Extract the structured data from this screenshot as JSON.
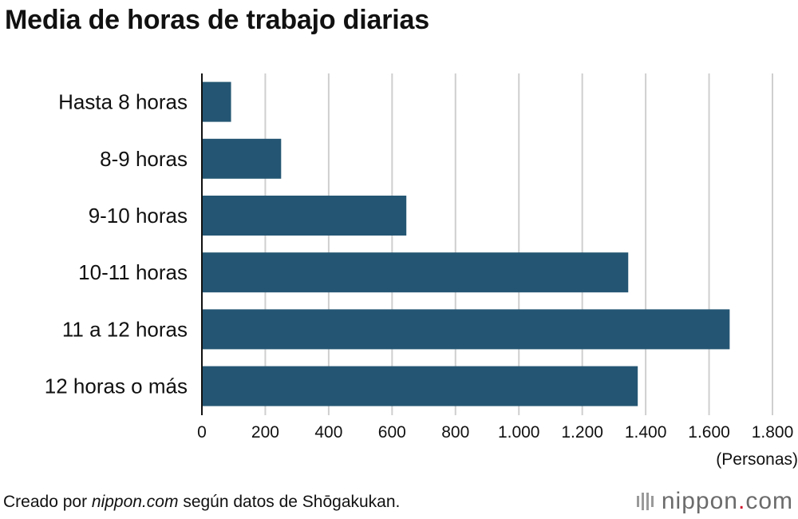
{
  "title": "Media de horas de trabajo diarias",
  "chart_data": {
    "type": "bar",
    "orientation": "horizontal",
    "categories": [
      "Hasta 8 horas",
      "8-9 horas",
      "9-10 horas",
      "10-11 horas",
      "11 a 12 horas",
      "12 horas o más"
    ],
    "values": [
      92,
      250,
      645,
      1345,
      1665,
      1375
    ],
    "xlim": [
      0,
      1800
    ],
    "ticks": [
      0,
      200,
      400,
      600,
      800,
      1000,
      1200,
      1400,
      1600,
      1800
    ],
    "tick_labels": [
      "0",
      "200",
      "400",
      "600",
      "800",
      "1.000",
      "1.200",
      "1.400",
      "1.600",
      "1.800"
    ],
    "xlabel": "(Personas)",
    "grid": "vertical",
    "bar_color": "#245673"
  },
  "source": {
    "prefix": "Creado por ",
    "site": "nippon.com",
    "suffix": " según datos de Shōgakukan."
  },
  "logo": {
    "name": "nippon",
    "dot": ".",
    "tld": "com",
    "mark_icon": "nippon-logo-bars-icon",
    "accent": "#d0112b"
  }
}
